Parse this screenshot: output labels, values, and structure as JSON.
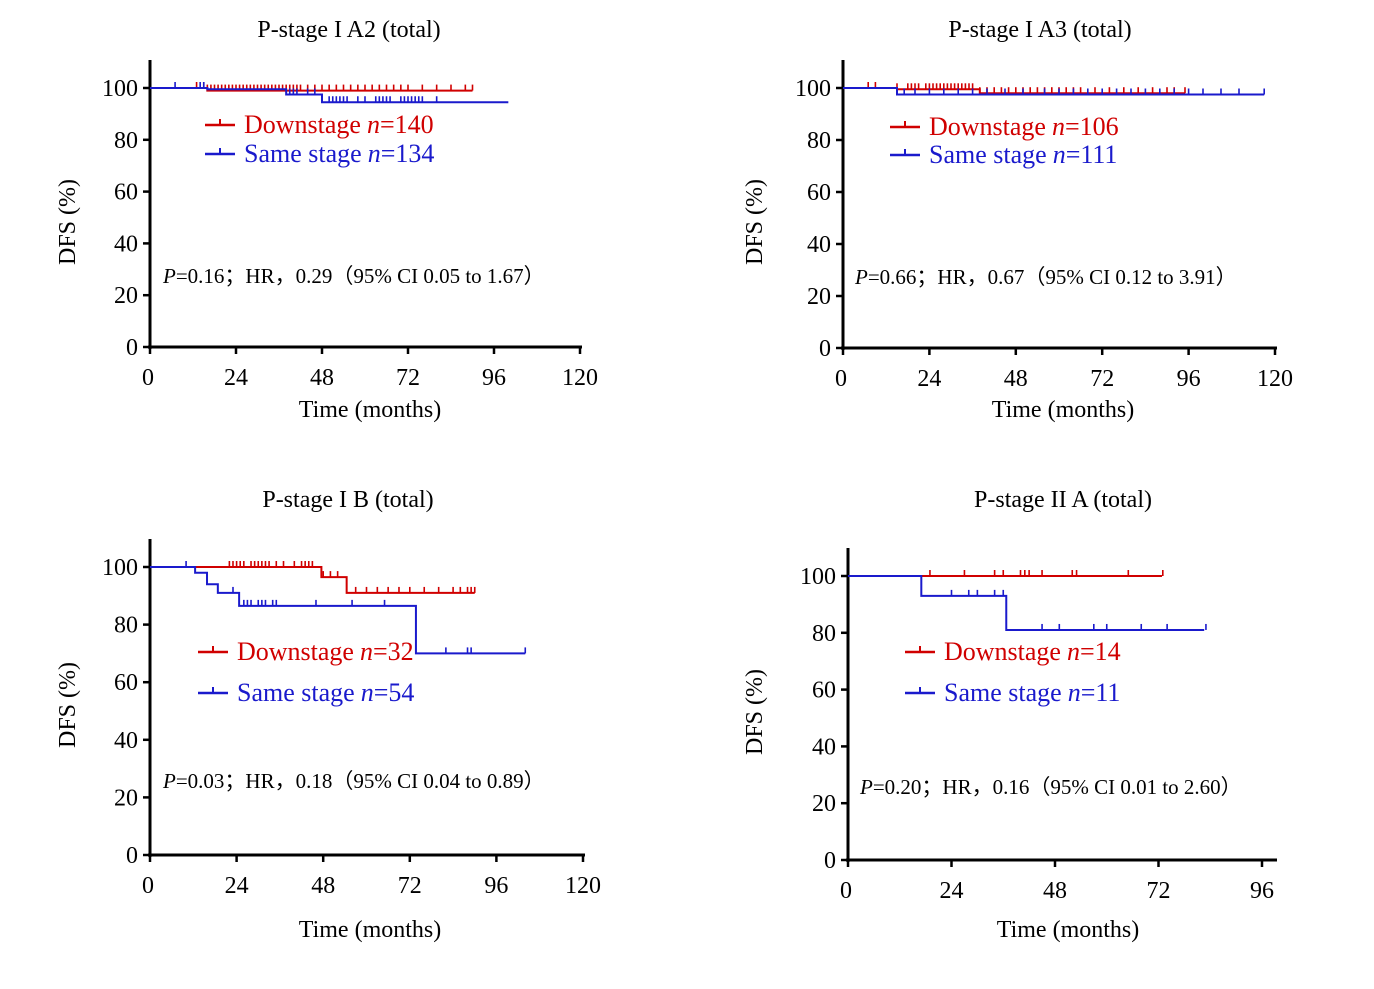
{
  "colors": {
    "downstage": "#d00000",
    "same_stage": "#1a1acc",
    "axis": "#000000"
  },
  "chart_data": [
    {
      "type": "line",
      "subtype": "kaplan-meier",
      "title": "P-stage I A2 (total)",
      "xlabel": "Time (months)",
      "ylabel": "DFS (%)",
      "xlim": [
        0,
        120
      ],
      "ylim": [
        0,
        100
      ],
      "xticks": [
        0,
        24,
        48,
        72,
        96,
        120
      ],
      "yticks": [
        0,
        20,
        40,
        60,
        80,
        100
      ],
      "legend_position": "top-left",
      "series": [
        {
          "name": "Downstage",
          "n_symbol": "n",
          "n_text": "=140",
          "color_key": "downstage",
          "steps": [
            [
              0,
              100
            ],
            [
              16,
              99
            ],
            [
              90,
              99
            ]
          ],
          "censored": [
            13,
            15,
            16,
            17,
            18,
            19,
            20,
            21,
            22,
            23,
            24,
            25,
            26,
            27,
            28,
            29,
            30,
            31,
            32,
            33,
            34,
            35,
            36,
            37,
            38,
            39,
            40,
            41,
            42,
            44,
            46,
            48,
            50,
            52,
            54,
            56,
            58,
            60,
            62,
            64,
            66,
            68,
            70,
            72,
            76,
            80,
            84,
            88,
            90
          ]
        },
        {
          "name": "Same stage",
          "n_symbol": "n",
          "n_text": "=134",
          "color_key": "same_stage",
          "steps": [
            [
              0,
              100
            ],
            [
              16,
              99.5
            ],
            [
              38,
              97.5
            ],
            [
              48,
              94.5
            ],
            [
              100,
              94.5
            ]
          ],
          "censored": [
            7,
            14,
            15,
            39,
            40,
            41,
            44,
            46,
            48,
            50,
            51,
            52,
            53,
            54,
            55,
            58,
            60,
            63,
            64,
            65,
            66,
            67,
            70,
            71,
            72,
            73,
            74,
            75,
            76,
            80
          ]
        }
      ],
      "annotation": {
        "p_symbol": "P",
        "text": "=0.16；HR，0.29（95% CI 0.05 to 1.67）"
      }
    },
    {
      "type": "line",
      "subtype": "kaplan-meier",
      "title": "P-stage I A3 (total)",
      "xlabel": "Time (months)",
      "ylabel": "DFS (%)",
      "xlim": [
        0,
        120
      ],
      "ylim": [
        0,
        100
      ],
      "xticks": [
        0,
        24,
        48,
        72,
        96,
        120
      ],
      "yticks": [
        0,
        20,
        40,
        60,
        80,
        100
      ],
      "legend_position": "top-left",
      "series": [
        {
          "name": "Downstage",
          "n_symbol": "n",
          "n_text": "=106",
          "color_key": "downstage",
          "steps": [
            [
              0,
              100
            ],
            [
              15,
              99.5
            ],
            [
              38,
              98
            ],
            [
              95,
              98
            ]
          ],
          "censored": [
            7,
            9,
            15,
            18,
            19,
            20,
            21,
            23,
            24,
            25,
            26,
            27,
            28,
            29,
            30,
            31,
            32,
            33,
            34,
            35,
            36,
            38,
            40,
            42,
            44,
            46,
            48,
            50,
            52,
            54,
            56,
            58,
            60,
            62,
            64,
            66,
            70,
            74,
            78,
            82,
            86,
            90,
            92,
            95
          ]
        },
        {
          "name": "Same stage",
          "n_symbol": "n",
          "n_text": "=111",
          "color_key": "same_stage",
          "steps": [
            [
              0,
              100
            ],
            [
              15,
              97.5
            ],
            [
              117,
              97.5
            ]
          ],
          "censored": [
            15,
            17,
            20,
            24,
            28,
            32,
            36,
            40,
            45,
            50,
            56,
            60,
            64,
            68,
            72,
            76,
            80,
            84,
            88,
            92,
            96,
            100,
            105,
            110,
            117
          ]
        }
      ],
      "annotation": {
        "p_symbol": "P",
        "text": "=0.66；HR，0.67（95% CI 0.12 to 3.91）"
      }
    },
    {
      "type": "line",
      "subtype": "kaplan-meier",
      "title": "P-stage I B (total)",
      "xlabel": "Time (months)",
      "ylabel": "DFS (%)",
      "xlim": [
        0,
        120
      ],
      "ylim": [
        0,
        100
      ],
      "xticks": [
        0,
        24,
        48,
        72,
        96,
        120
      ],
      "yticks": [
        0,
        20,
        40,
        60,
        80,
        100
      ],
      "legend_position": "middle-left",
      "series": [
        {
          "name": "Downstage",
          "n_symbol": "n",
          "n_text": "=32",
          "color_key": "downstage",
          "steps": [
            [
              0,
              100
            ],
            [
              47.5,
              96.5
            ],
            [
              54.5,
              91
            ],
            [
              90,
              91
            ]
          ],
          "censored": [
            22,
            23,
            24,
            25,
            26,
            28,
            29,
            30,
            31,
            32,
            33,
            35,
            37,
            40,
            42,
            43,
            44,
            45,
            48,
            50,
            52,
            57,
            60,
            63,
            66,
            69,
            72,
            76,
            80,
            84,
            86,
            88,
            89,
            90
          ]
        },
        {
          "name": "Same stage",
          "n_symbol": "n",
          "n_text": "=54",
          "color_key": "same_stage",
          "steps": [
            [
              0,
              100
            ],
            [
              12.5,
              98
            ],
            [
              15.8,
              94
            ],
            [
              18.8,
              91
            ],
            [
              24.7,
              86.5
            ],
            [
              73.7,
              70
            ],
            [
              104,
              70
            ]
          ],
          "censored": [
            10,
            23,
            26,
            27,
            28,
            30,
            31,
            32,
            34,
            35,
            46,
            56,
            65,
            82,
            88,
            89,
            104
          ]
        }
      ],
      "annotation": {
        "p_symbol": "P",
        "text": "=0.03；HR，0.18（95% CI 0.04 to 0.89）"
      }
    },
    {
      "type": "line",
      "subtype": "kaplan-meier",
      "title": "P-stage II A (total)",
      "xlabel": "Time (months)",
      "ylabel": "DFS (%)",
      "xlim": [
        0,
        96
      ],
      "ylim": [
        0,
        100
      ],
      "xticks": [
        0,
        24,
        48,
        72,
        96
      ],
      "yticks": [
        0,
        20,
        40,
        60,
        80,
        100
      ],
      "legend_position": "middle-left",
      "series": [
        {
          "name": "Downstage",
          "n_symbol": "n",
          "n_text": "=14",
          "color_key": "downstage",
          "steps": [
            [
              0,
              100
            ],
            [
              72.8,
              100
            ]
          ],
          "censored": [
            19,
            27,
            34,
            36,
            40,
            41,
            42,
            45,
            52,
            53,
            65,
            73
          ]
        },
        {
          "name": "Same stage",
          "n_symbol": "n",
          "n_text": "=11",
          "color_key": "same_stage",
          "steps": [
            [
              0,
              100
            ],
            [
              17,
              93
            ],
            [
              36.7,
              81
            ],
            [
              82.6,
              81
            ]
          ],
          "censored": [
            24,
            28,
            30,
            34,
            36,
            45,
            49,
            57,
            60,
            68,
            74,
            83
          ]
        }
      ],
      "annotation": {
        "p_symbol": "P",
        "text": "=0.20；HR，0.16（95% CI 0.01 to 2.60）"
      }
    }
  ]
}
